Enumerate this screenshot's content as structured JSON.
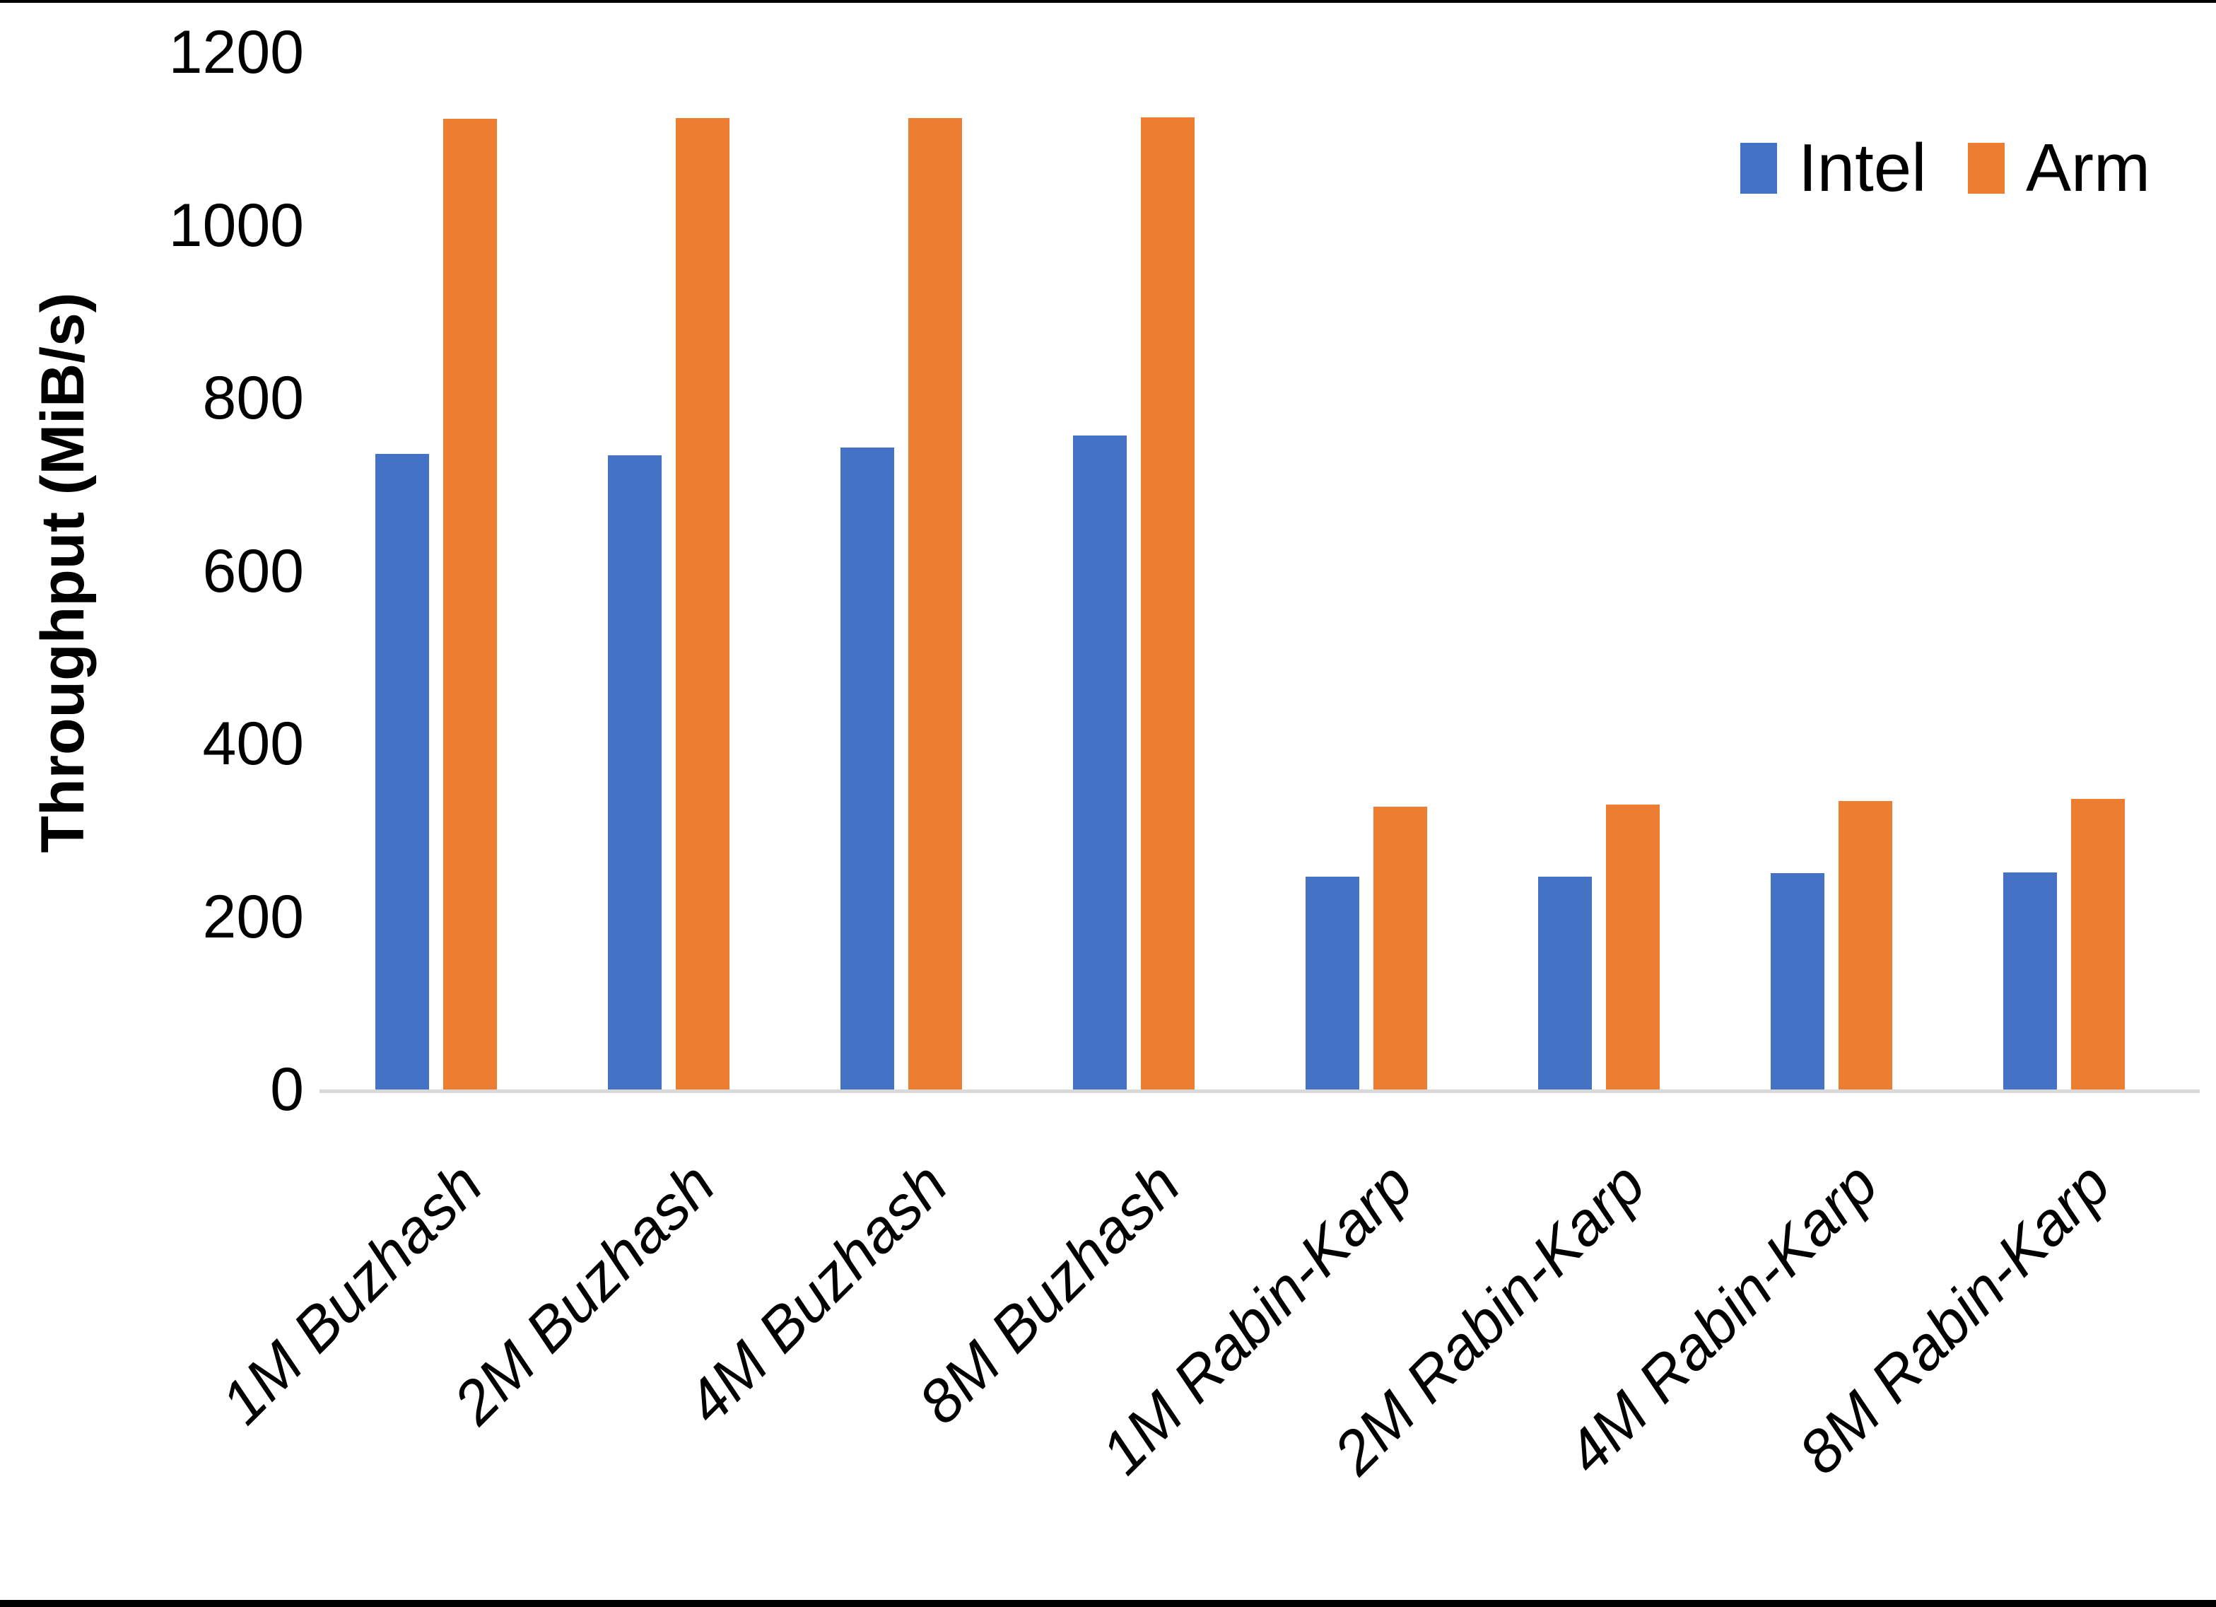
{
  "chart_data": {
    "type": "bar",
    "title": "",
    "xlabel": "",
    "ylabel": "Throughput (MiB/s)",
    "ylim": [
      0,
      1200
    ],
    "yticks": [
      0,
      200,
      400,
      600,
      800,
      1000,
      1200
    ],
    "grid": false,
    "legend_position": "top-right",
    "categories": [
      "1M Buzhash",
      "2M Buzhash",
      "4M Buzhash",
      "8M Buzhash",
      "1M Rabin-Karp",
      "2M Rabin-Karp",
      "4M Rabin-Karp",
      "8M Rabin-Karp"
    ],
    "series": [
      {
        "name": "Intel",
        "color": "#4472C4",
        "values": [
          735,
          734,
          743,
          757,
          246,
          246,
          250,
          251
        ]
      },
      {
        "name": "Arm",
        "color": "#ED7D31",
        "values": [
          1123,
          1124,
          1124,
          1125,
          327,
          330,
          334,
          336
        ]
      }
    ]
  },
  "colors": {
    "axis_line": "#d9d9d9",
    "text": "#000000",
    "frame": "#000000",
    "background": "#ffffff"
  }
}
